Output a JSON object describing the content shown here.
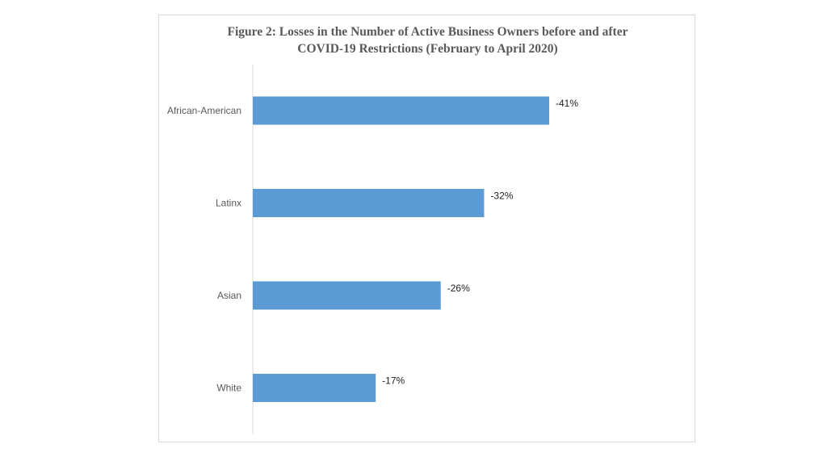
{
  "chart_data": {
    "type": "bar",
    "orientation": "horizontal",
    "title_lines": [
      "Figure 2: Losses in the Number of Active Business Owners before and after",
      "COVID-19 Restrictions (February to April 2020)"
    ],
    "categories": [
      "African-American",
      "Latinx",
      "Asian",
      "White"
    ],
    "values": [
      -41,
      -32,
      -26,
      -17
    ],
    "value_labels": [
      "-41%",
      "-32%",
      "-26%",
      "-17%"
    ],
    "bar_color": "#5b9bd5",
    "axis_color": "#d9d9d9",
    "grid": false,
    "legend": "none"
  }
}
